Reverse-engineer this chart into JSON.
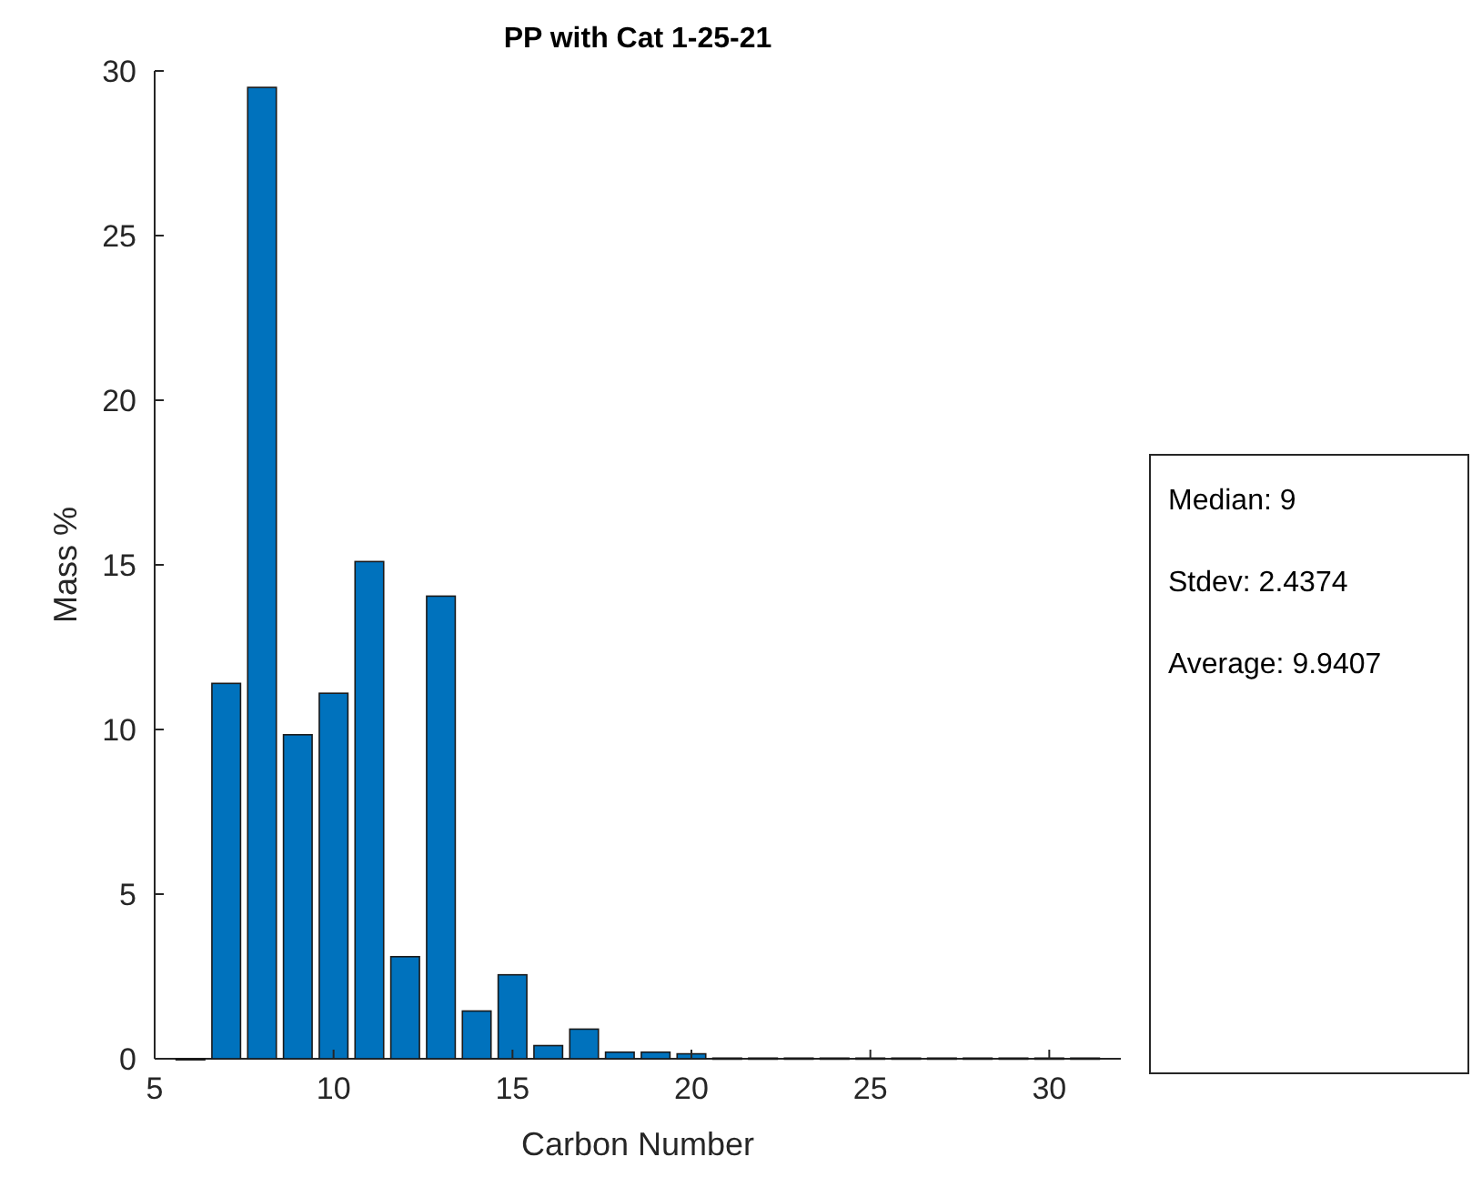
{
  "chart_data": {
    "type": "bar",
    "title": "PP with Cat 1-25-21",
    "xlabel": "Carbon Number",
    "ylabel": "Mass %",
    "x": [
      6,
      7,
      8,
      9,
      10,
      11,
      12,
      13,
      14,
      15,
      16,
      17,
      18,
      19,
      20,
      21,
      22,
      23,
      24,
      25,
      26,
      27,
      28,
      29,
      30,
      31
    ],
    "values": [
      0,
      11.4,
      29.5,
      9.84,
      11.1,
      15.1,
      3.1,
      14.05,
      1.45,
      2.55,
      0.4,
      0.9,
      0.2,
      0.2,
      0.15,
      0.02,
      0.02,
      0.02,
      0.02,
      0.02,
      0.02,
      0.02,
      0.02,
      0.02,
      0.02,
      0.02
    ],
    "color": "#0072bd",
    "xlim": [
      5,
      32
    ],
    "xticks": [
      5,
      10,
      15,
      20,
      25,
      30
    ],
    "ylim": [
      0,
      30
    ],
    "yticks": [
      0,
      5,
      10,
      15,
      20,
      25,
      30
    ],
    "annotations": [
      "Median: 9",
      "Stdev: 2.4374",
      "Average: 9.9407"
    ]
  }
}
